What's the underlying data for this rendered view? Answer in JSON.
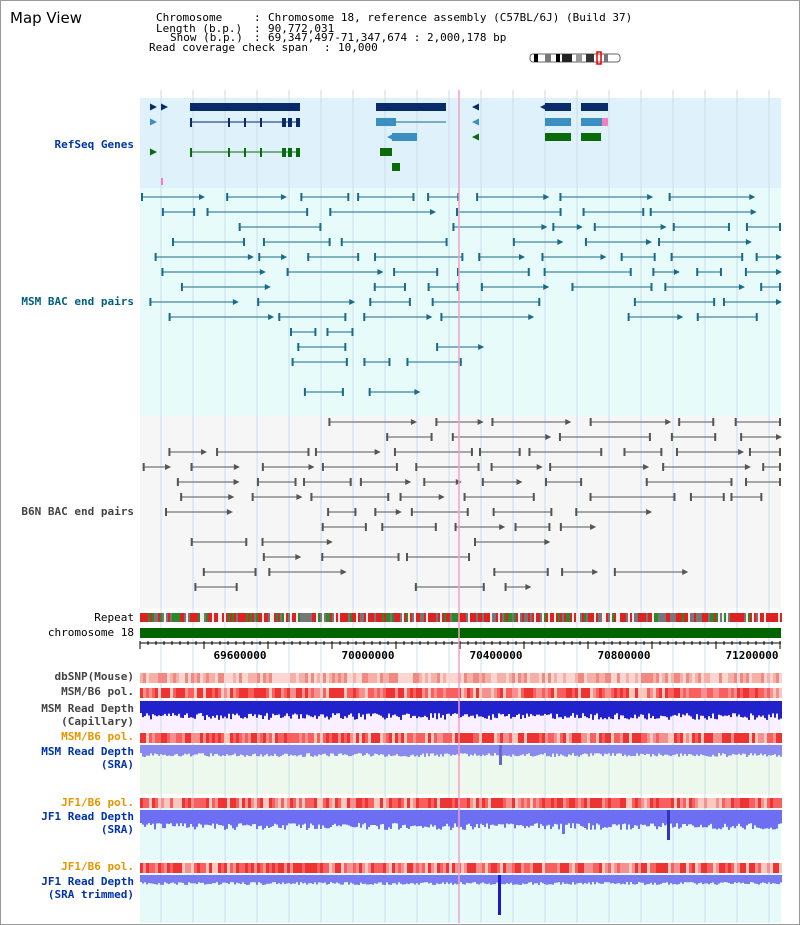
{
  "panel_title": "Map View",
  "info": {
    "chromosome_key": "Chromosome",
    "chromosome_val": "Chromosome 18, reference assembly (C57BL/6J) (Build 37)",
    "length_key": "Length (b.p.)",
    "length_val": "90,772,031",
    "show_key": "Show (b.p.)",
    "show_val": "69,347,497-71,347,674 : 2,000,178 bp",
    "coverage_key": "Read coverage check span",
    "coverage_val": "10,000"
  },
  "tracks": {
    "refseq": "RefSeq Genes",
    "msm_bac": "MSM BAC end pairs",
    "b6n_bac": "B6N BAC end pairs",
    "repeat": "Repeat",
    "chromosome": "chromosome 18",
    "dbsnp": "dbSNP(Mouse)",
    "msm_b6_pol_1": "MSM/B6 pol.",
    "msm_depth_cap_1": "MSM Read Depth",
    "msm_depth_cap_2": "(Capillary)",
    "msm_b6_pol_2": "MSM/B6 pol.",
    "msm_depth_sra_1": "MSM Read Depth",
    "msm_depth_sra_2": "(SRA)",
    "jf1_b6_pol_1": "JF1/B6 pol.",
    "jf1_depth_sra_1": "JF1 Read Depth",
    "jf1_depth_sra_2": "(SRA)",
    "jf1_b6_pol_2": "JF1/B6 pol.",
    "jf1_depth_trim_1": "JF1 Read Depth",
    "jf1_depth_trim_2": "(SRA trimmed)"
  },
  "axis": {
    "ticks": [
      "69600000",
      "70000000",
      "70400000",
      "70800000",
      "71200000"
    ]
  },
  "colors": {
    "refseq_navy": "#0a2b6a",
    "refseq_blue": "#3a8fc0",
    "refseq_green": "#0a6b0a",
    "refseq_pink": "#f080c0",
    "msm_teal": "#1a6a8a",
    "b6n_gray": "#555555",
    "label_blue": "#0033aa",
    "label_teal": "#005f7f",
    "label_orange": "#e69500",
    "chrom_green": "#006400"
  }
}
